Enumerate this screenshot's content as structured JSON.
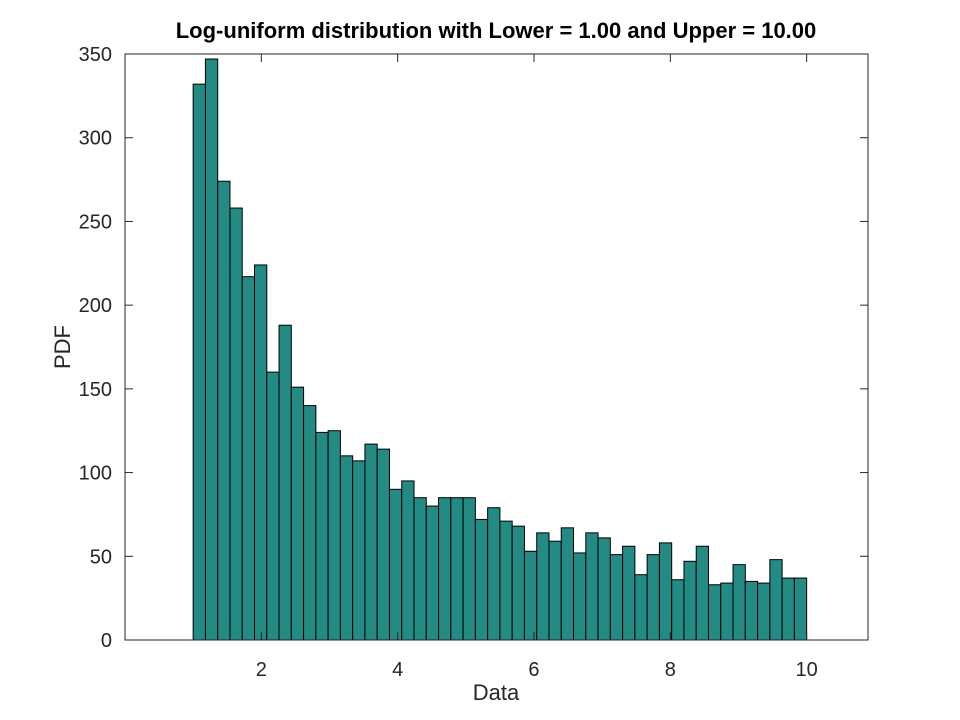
{
  "chart_data": {
    "type": "bar",
    "title": "Log-uniform distribution with Lower = 1.00 and Upper = 10.00",
    "xlabel": "Data",
    "ylabel": "PDF",
    "xlim": [
      0.0,
      10.9
    ],
    "ylim": [
      0,
      350
    ],
    "x_ticks": [
      2,
      4,
      6,
      8,
      10
    ],
    "x_tick_labels": [
      "2",
      "4",
      "6",
      "8",
      "10"
    ],
    "y_ticks": [
      0,
      50,
      100,
      150,
      200,
      250,
      300,
      350
    ],
    "y_tick_labels": [
      "0",
      "50",
      "100",
      "150",
      "200",
      "250",
      "300",
      "350"
    ],
    "grid": false,
    "bar_color": "#238b84",
    "bin_start": 1.0,
    "bin_width": 0.18,
    "values": [
      332,
      347,
      274,
      258,
      217,
      224,
      160,
      188,
      151,
      140,
      124,
      125,
      110,
      107,
      117,
      114,
      90,
      95,
      85,
      80,
      85,
      85,
      85,
      72,
      79,
      71,
      68,
      53,
      64,
      59,
      67,
      52,
      64,
      61,
      51,
      56,
      39,
      51,
      58,
      36,
      47,
      56,
      33,
      34,
      45,
      35,
      34,
      48,
      37,
      37
    ]
  }
}
